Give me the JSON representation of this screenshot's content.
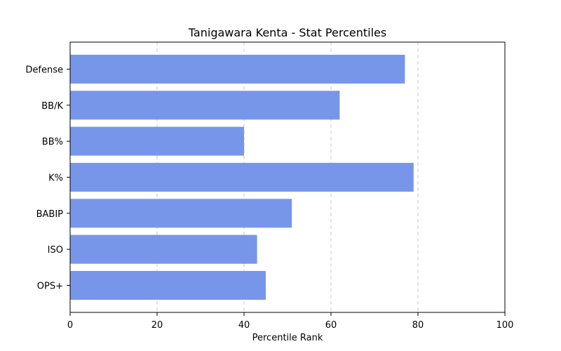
{
  "chart_data": {
    "type": "bar",
    "orientation": "horizontal",
    "title": "Tanigawara Kenta - Stat Percentiles",
    "xlabel": "Percentile Rank",
    "ylabel": "",
    "categories": [
      "OPS+",
      "ISO",
      "BABIP",
      "K%",
      "BB%",
      "BB/K",
      "Defense"
    ],
    "values": [
      45,
      43,
      51,
      79,
      40,
      62,
      77
    ],
    "xlim": [
      0,
      100
    ],
    "xticks": [
      "0",
      "20",
      "40",
      "60",
      "80",
      "100"
    ],
    "grid": "x-dashed",
    "bar_color": "#7796ea",
    "legend": "none"
  }
}
